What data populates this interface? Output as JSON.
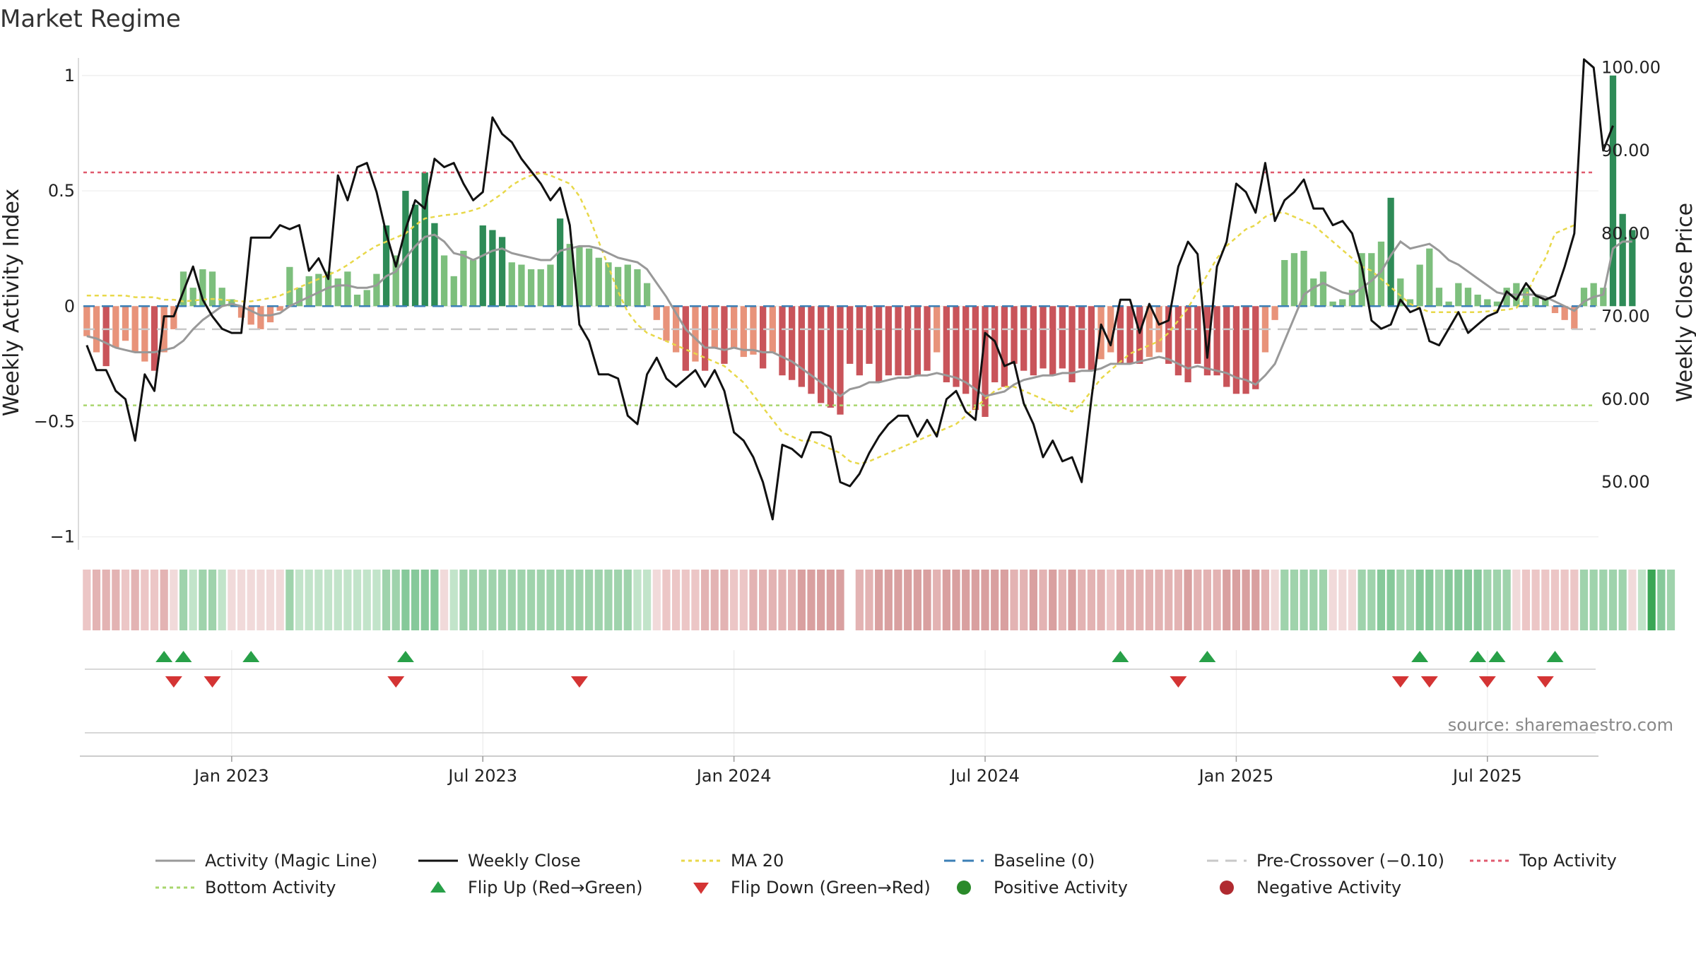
{
  "chart_data": {
    "type": "bar",
    "title": "Market Regime",
    "ylabel_left": "Weekly Activity Index",
    "ylabel_right": "Weekly Close Price",
    "source": "source: sharemaestro.com",
    "left_ylim": [
      -1.05,
      1.07
    ],
    "left_ticks": [
      1,
      0.5,
      0,
      -0.5,
      -1
    ],
    "left_tick_labels": [
      "1",
      "0.5",
      "0",
      "−0.5",
      "−1"
    ],
    "right_ylim": [
      42,
      101
    ],
    "right_ticks": [
      100,
      90,
      80,
      70,
      60,
      50
    ],
    "right_tick_labels": [
      "100.00",
      "90.00",
      "80.00",
      "70.00",
      "60.00",
      "50.00"
    ],
    "x_tick_labels": [
      "Jan 2023",
      "Jul 2023",
      "Jan 2024",
      "Jul 2024",
      "Jan 2025",
      "Jul 2025"
    ],
    "x_tick_weeks": [
      15,
      41,
      67,
      93,
      119,
      145
    ],
    "weeks": 157,
    "reference_lines": {
      "baseline": 0,
      "pre_crossover": -0.1,
      "top_activity": 0.58,
      "bottom_activity": -0.43
    },
    "activity_index": [
      -0.13,
      -0.2,
      -0.26,
      -0.18,
      -0.15,
      -0.2,
      -0.24,
      -0.28,
      -0.2,
      -0.1,
      0.15,
      0.08,
      0.16,
      0.15,
      0.08,
      0.03,
      -0.05,
      -0.08,
      -0.1,
      -0.07,
      -0.02,
      0.17,
      0.08,
      0.13,
      0.14,
      0.15,
      0.12,
      0.15,
      0.05,
      0.07,
      0.14,
      0.35,
      0.22,
      0.5,
      0.44,
      0.58,
      0.36,
      0.22,
      0.13,
      0.24,
      0.2,
      0.35,
      0.33,
      0.3,
      0.19,
      0.18,
      0.16,
      0.16,
      0.18,
      0.38,
      0.27,
      0.26,
      0.25,
      0.21,
      0.19,
      0.17,
      0.18,
      0.16,
      0.1,
      -0.06,
      -0.15,
      -0.2,
      -0.28,
      -0.24,
      -0.28,
      -0.18,
      -0.25,
      -0.18,
      -0.22,
      -0.21,
      -0.27,
      -0.2,
      -0.3,
      -0.32,
      -0.35,
      -0.38,
      -0.42,
      -0.44,
      -0.47,
      -0.25,
      -0.3,
      -0.25,
      -0.33,
      -0.3,
      -0.3,
      -0.3,
      -0.3,
      -0.28,
      -0.2,
      -0.33,
      -0.35,
      -0.38,
      -0.45,
      -0.48,
      -0.33,
      -0.35,
      -0.25,
      -0.28,
      -0.3,
      -0.27,
      -0.3,
      -0.27,
      -0.33,
      -0.27,
      -0.28,
      -0.23,
      -0.2,
      -0.25,
      -0.25,
      -0.25,
      -0.22,
      -0.2,
      -0.25,
      -0.3,
      -0.33,
      -0.25,
      -0.3,
      -0.3,
      -0.35,
      -0.38,
      -0.38,
      -0.36,
      -0.2,
      -0.06,
      0.2,
      0.23,
      0.24,
      0.12,
      0.15,
      0.02,
      0.03,
      0.07,
      0.23,
      0.23,
      0.28,
      0.47,
      0.12,
      0.03,
      0.18,
      0.25,
      0.08,
      0.02,
      0.1,
      0.08,
      0.05,
      0.03,
      0.02,
      0.08,
      0.1,
      0.08,
      0.04,
      0.03,
      -0.03,
      -0.06,
      -0.1,
      0.08,
      0.1,
      0.08,
      1.0,
      0.4,
      0.33
    ],
    "magic_line": [
      -0.13,
      -0.14,
      -0.16,
      -0.18,
      -0.19,
      -0.2,
      -0.2,
      -0.2,
      -0.19,
      -0.18,
      -0.15,
      -0.1,
      -0.06,
      -0.03,
      0,
      0.01,
      0,
      -0.02,
      -0.04,
      -0.04,
      -0.03,
      0,
      0.02,
      0.04,
      0.06,
      0.08,
      0.09,
      0.09,
      0.08,
      0.08,
      0.09,
      0.13,
      0.15,
      0.21,
      0.26,
      0.3,
      0.31,
      0.28,
      0.23,
      0.22,
      0.2,
      0.22,
      0.24,
      0.25,
      0.23,
      0.22,
      0.21,
      0.2,
      0.2,
      0.24,
      0.25,
      0.26,
      0.26,
      0.25,
      0.23,
      0.21,
      0.2,
      0.19,
      0.16,
      0.1,
      0.04,
      -0.03,
      -0.1,
      -0.14,
      -0.18,
      -0.18,
      -0.19,
      -0.18,
      -0.19,
      -0.19,
      -0.2,
      -0.2,
      -0.22,
      -0.24,
      -0.27,
      -0.3,
      -0.33,
      -0.36,
      -0.39,
      -0.36,
      -0.35,
      -0.33,
      -0.33,
      -0.32,
      -0.31,
      -0.31,
      -0.3,
      -0.3,
      -0.29,
      -0.3,
      -0.31,
      -0.33,
      -0.36,
      -0.39,
      -0.38,
      -0.37,
      -0.34,
      -0.32,
      -0.31,
      -0.3,
      -0.3,
      -0.29,
      -0.29,
      -0.28,
      -0.28,
      -0.27,
      -0.25,
      -0.25,
      -0.25,
      -0.24,
      -0.23,
      -0.22,
      -0.23,
      -0.25,
      -0.27,
      -0.26,
      -0.27,
      -0.28,
      -0.29,
      -0.31,
      -0.32,
      -0.34,
      -0.3,
      -0.25,
      -0.15,
      -0.05,
      0.05,
      0.08,
      0.1,
      0.08,
      0.06,
      0.05,
      0.08,
      0.11,
      0.15,
      0.22,
      0.28,
      0.25,
      0.26,
      0.27,
      0.24,
      0.2,
      0.18,
      0.15,
      0.12,
      0.09,
      0.06,
      0.05,
      0.05,
      0.05,
      0.05,
      0.04,
      0.02,
      0,
      -0.02,
      0.02,
      0.04,
      0.05,
      0.25,
      0.28,
      0.28
    ],
    "weekly_close": [
      66.5,
      63.5,
      63.5,
      61,
      60,
      55,
      63,
      61,
      70,
      70,
      73,
      76,
      72,
      70,
      68.5,
      68,
      68,
      79.5,
      79.5,
      79.5,
      81,
      80.5,
      81,
      75.5,
      77,
      74.5,
      87,
      84,
      88,
      88.5,
      85,
      80,
      76,
      80.5,
      84,
      83,
      89,
      88,
      88.5,
      86,
      84,
      85,
      94,
      92,
      91,
      89,
      87.5,
      86,
      84,
      85.5,
      81,
      69,
      67,
      63,
      63,
      62.5,
      58,
      57,
      63,
      65,
      62.5,
      61.5,
      62.5,
      63.5,
      61.5,
      63.5,
      61,
      56,
      55,
      53,
      50,
      45.5,
      54.5,
      54,
      53,
      56,
      56,
      55.5,
      50,
      49.5,
      51,
      53.5,
      55.5,
      57,
      58,
      58,
      55.5,
      57.5,
      55.5,
      60,
      61,
      58.5,
      57.5,
      68,
      67,
      64,
      64.5,
      59.5,
      57,
      53,
      55,
      52.5,
      53,
      50,
      60,
      69,
      66.5,
      72,
      72,
      68,
      71.5,
      69,
      69.5,
      76,
      79,
      77.5,
      65,
      76,
      79,
      86,
      85,
      82.5,
      88.5,
      81.5,
      84,
      85,
      86.5,
      83,
      83,
      81,
      81.5,
      80,
      76,
      69.5,
      68.5,
      69,
      72,
      70.5,
      71,
      67,
      66.5,
      68.5,
      70.5,
      68,
      69,
      70,
      70.5,
      73,
      72,
      74,
      72.5,
      72,
      72.5,
      76,
      80,
      101,
      100,
      90,
      93
    ],
    "ma20": [
      72.5,
      72.5,
      72.5,
      72.5,
      72.5,
      72.3,
      72.3,
      72.3,
      72,
      72,
      71.8,
      71.9,
      72,
      72.1,
      72,
      71.9,
      71.8,
      71.8,
      72,
      72.2,
      72.5,
      73,
      73.5,
      74,
      74.5,
      75,
      75.5,
      76.2,
      77,
      77.8,
      78.5,
      79,
      79.5,
      80,
      81,
      81.8,
      82,
      82.2,
      82.3,
      82.5,
      82.8,
      83.2,
      84,
      84.8,
      85.8,
      86.5,
      87,
      87.3,
      87,
      86.5,
      86,
      84.5,
      82,
      79,
      76,
      73,
      70.5,
      69,
      68,
      67.5,
      67,
      66.5,
      66,
      65.5,
      65,
      64.5,
      64,
      63,
      62,
      60.5,
      59,
      57.5,
      56,
      55.5,
      55,
      55,
      54.5,
      54,
      53.5,
      52.5,
      52.2,
      52.5,
      53,
      53.5,
      54,
      54.5,
      55,
      55.5,
      56,
      56.5,
      57,
      58,
      59,
      60,
      61,
      61.5,
      61.5,
      61,
      60.5,
      60,
      59.5,
      59,
      58.5,
      59.5,
      61,
      62.5,
      63.5,
      64.5,
      65.5,
      66,
      66.5,
      67,
      68,
      69.5,
      71,
      73,
      75,
      77,
      78.5,
      79.5,
      80.5,
      81,
      82,
      82.5,
      82.5,
      82,
      81.5,
      81,
      80,
      79,
      78,
      77,
      76,
      75.5,
      74.5,
      73.5,
      72.5,
      71.5,
      71,
      70.5,
      70.5,
      70.5,
      70.5,
      70.5,
      70.5,
      70.6,
      70.7,
      70.8,
      71,
      72.5,
      75,
      77,
      80,
      80.5,
      81
    ],
    "regime_strip": [
      -0.15,
      -0.22,
      -0.25,
      -0.2,
      -0.15,
      -0.2,
      -0.15,
      -0.12,
      -0.25,
      -0.08,
      0.2,
      0.1,
      0.15,
      0.15,
      0.1,
      -0.05,
      -0.05,
      -0.08,
      -0.1,
      -0.07,
      -0.05,
      0.15,
      0.12,
      0.12,
      0.1,
      0.12,
      0.1,
      0.08,
      0.05,
      0.05,
      0.1,
      0.25,
      0.2,
      0.35,
      0.35,
      0.38,
      0.3,
      -0.1,
      0.1,
      0.2,
      0.15,
      0.2,
      0.2,
      0.18,
      0.15,
      0.15,
      0.15,
      0.15,
      0.15,
      0.2,
      0.18,
      0.18,
      0.15,
      0.15,
      0.15,
      0.15,
      0.15,
      0.12,
      0.12,
      -0.1,
      -0.12,
      -0.15,
      -0.15,
      -0.15,
      -0.2,
      -0.2,
      -0.2,
      -0.18,
      -0.18,
      -0.2,
      -0.22,
      -0.2,
      -0.25,
      -0.25,
      -0.3,
      -0.3,
      -0.3,
      -0.3,
      -0.32,
      null,
      -0.25,
      -0.25,
      -0.3,
      -0.3,
      -0.3,
      -0.3,
      -0.3,
      -0.35,
      -0.25,
      -0.3,
      -0.3,
      -0.3,
      -0.35,
      -0.35,
      -0.3,
      -0.3,
      -0.25,
      -0.25,
      -0.3,
      -0.25,
      -0.3,
      -0.25,
      -0.3,
      -0.25,
      -0.25,
      -0.2,
      -0.15,
      -0.25,
      -0.25,
      -0.25,
      -0.2,
      -0.2,
      -0.25,
      -0.25,
      -0.3,
      -0.25,
      -0.25,
      -0.25,
      -0.3,
      -0.3,
      -0.3,
      -0.3,
      -0.2,
      -0.1,
      0.2,
      0.2,
      0.2,
      0.15,
      0.15,
      -0.1,
      -0.1,
      -0.1,
      0.25,
      0.25,
      0.3,
      0.35,
      0.25,
      0.2,
      0.3,
      0.3,
      0.25,
      0.35,
      0.3,
      0.3,
      0.3,
      0.25,
      0.2,
      0.2,
      -0.1,
      -0.15,
      -0.15,
      -0.15,
      -0.15,
      -0.15,
      -0.15,
      0.15,
      0.15,
      0.15,
      0.15,
      0.15,
      -0.1,
      0.1,
      0.8,
      0.3,
      0.25
    ],
    "flip_up_weeks": [
      8,
      10,
      17,
      33,
      107,
      116,
      138,
      144,
      146,
      152
    ],
    "flip_down_weeks": [
      9,
      13,
      32,
      51,
      113,
      136,
      139,
      145,
      151
    ],
    "legend": [
      {
        "label": "Activity (Magic Line)",
        "kind": "line",
        "color": "#999999",
        "dash": ""
      },
      {
        "label": "Weekly Close",
        "kind": "line",
        "color": "#111111",
        "dash": ""
      },
      {
        "label": "MA 20",
        "kind": "line",
        "color": "#e8d84a",
        "dash": "5 5"
      },
      {
        "label": "Baseline (0)",
        "kind": "line",
        "color": "#3b7fb6",
        "dash": "16 10"
      },
      {
        "label": "Pre-Crossover (−0.10)",
        "kind": "line",
        "color": "#c8c8c8",
        "dash": "16 10"
      },
      {
        "label": "Top Activity",
        "kind": "line",
        "color": "#e05a6e",
        "dash": "5 5"
      },
      {
        "label": "Bottom Activity",
        "kind": "line",
        "color": "#a9d66e",
        "dash": "5 5"
      },
      {
        "label": "Flip Up (Red→Green)",
        "kind": "up",
        "color": "#28a048",
        "dash": ""
      },
      {
        "label": "Flip Down (Green→Red)",
        "kind": "down",
        "color": "#d43434",
        "dash": ""
      },
      {
        "label": "Positive Activity",
        "kind": "dot",
        "color": "#2a8a2a",
        "dash": ""
      },
      {
        "label": "Negative Activity",
        "kind": "dot",
        "color": "#b02a30",
        "dash": ""
      }
    ]
  }
}
